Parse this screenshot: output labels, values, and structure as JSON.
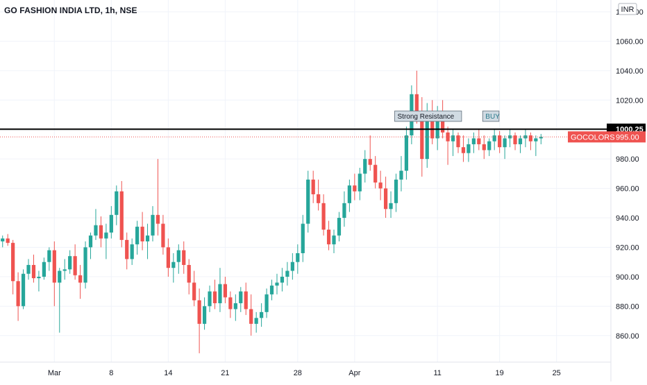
{
  "header": {
    "title": "GO FASHION INDIA LTD, 1h, NSE"
  },
  "price_axis": {
    "currency": "INR"
  },
  "chart_data": {
    "type": "candlestick",
    "title": "GO FASHION INDIA LTD, 1h, NSE",
    "currency": "INR",
    "ylim": [
      842,
      1088
    ],
    "y_ticks": [
      860,
      880,
      900,
      920,
      940,
      960,
      980,
      1000,
      1020,
      1040,
      1060,
      1080
    ],
    "y_tick_labels": [
      "860.00",
      "880.00",
      "900.00",
      "920.00",
      "940.00",
      "960.00",
      "980.00",
      "1000.00",
      "1020.00",
      "1040.00",
      "1060.00",
      "1080.00"
    ],
    "x_ticks": [
      {
        "label": "Mar",
        "index": 10
      },
      {
        "label": "8",
        "index": 21
      },
      {
        "label": "14",
        "index": 32
      },
      {
        "label": "21",
        "index": 43
      },
      {
        "label": "28",
        "index": 57
      },
      {
        "label": "Apr",
        "index": 68
      },
      {
        "label": "11",
        "index": 84
      },
      {
        "label": "19",
        "index": 96
      },
      {
        "label": "25",
        "index": 107
      }
    ],
    "candles_per_day": 7,
    "total_slots": 118,
    "colors": {
      "up": "#26a69a",
      "down": "#ef5350",
      "resistance": "#000000",
      "last_price": "#ef5350"
    },
    "candles": [
      [
        924,
        928,
        920,
        926
      ],
      [
        926,
        929,
        921,
        923
      ],
      [
        923,
        925,
        888,
        897
      ],
      [
        897,
        903,
        870,
        880
      ],
      [
        880,
        905,
        878,
        902
      ],
      [
        902,
        912,
        898,
        908
      ],
      [
        908,
        915,
        896,
        899
      ],
      [
        899,
        904,
        890,
        900
      ],
      [
        900,
        913,
        898,
        910
      ],
      [
        910,
        920,
        904,
        918
      ],
      [
        918,
        924,
        880,
        896
      ],
      [
        896,
        906,
        862,
        904
      ],
      [
        904,
        912,
        898,
        905
      ],
      [
        905,
        918,
        902,
        914
      ],
      [
        914,
        922,
        898,
        901
      ],
      [
        901,
        908,
        885,
        896
      ],
      [
        896,
        924,
        892,
        920
      ],
      [
        920,
        930,
        912,
        928
      ],
      [
        928,
        946,
        925,
        935
      ],
      [
        935,
        941,
        920,
        926
      ],
      [
        926,
        936,
        912,
        930
      ],
      [
        930,
        948,
        926,
        942
      ],
      [
        942,
        962,
        935,
        958
      ],
      [
        958,
        965,
        920,
        925
      ],
      [
        925,
        930,
        905,
        912
      ],
      [
        912,
        926,
        908,
        922
      ],
      [
        922,
        938,
        915,
        934
      ],
      [
        934,
        944,
        918,
        924
      ],
      [
        924,
        936,
        912,
        928
      ],
      [
        928,
        948,
        924,
        942
      ],
      [
        942,
        980,
        928,
        936
      ],
      [
        936,
        942,
        915,
        920
      ],
      [
        920,
        926,
        900,
        906
      ],
      [
        906,
        916,
        896,
        910
      ],
      [
        910,
        922,
        902,
        918
      ],
      [
        918,
        924,
        902,
        908
      ],
      [
        908,
        912,
        888,
        896
      ],
      [
        896,
        904,
        880,
        884
      ],
      [
        884,
        892,
        848,
        868
      ],
      [
        868,
        886,
        864,
        880
      ],
      [
        880,
        894,
        876,
        890
      ],
      [
        890,
        898,
        878,
        882
      ],
      [
        882,
        906,
        876,
        895
      ],
      [
        895,
        900,
        882,
        886
      ],
      [
        886,
        890,
        872,
        878
      ],
      [
        878,
        888,
        870,
        882
      ],
      [
        882,
        893,
        876,
        890
      ],
      [
        890,
        896,
        874,
        878
      ],
      [
        878,
        888,
        860,
        868
      ],
      [
        868,
        876,
        862,
        872
      ],
      [
        872,
        882,
        866,
        876
      ],
      [
        876,
        892,
        872,
        888
      ],
      [
        888,
        898,
        884,
        894
      ],
      [
        894,
        902,
        888,
        896
      ],
      [
        896,
        906,
        890,
        900
      ],
      [
        900,
        910,
        894,
        904
      ],
      [
        904,
        916,
        898,
        910
      ],
      [
        910,
        922,
        902,
        916
      ],
      [
        916,
        942,
        910,
        936
      ],
      [
        936,
        972,
        930,
        966
      ],
      [
        966,
        972,
        950,
        956
      ],
      [
        956,
        966,
        945,
        950
      ],
      [
        950,
        956,
        928,
        932
      ],
      [
        932,
        938,
        918,
        922
      ],
      [
        922,
        932,
        916,
        928
      ],
      [
        928,
        944,
        924,
        940
      ],
      [
        940,
        958,
        934,
        950
      ],
      [
        950,
        966,
        944,
        962
      ],
      [
        962,
        970,
        952,
        958
      ],
      [
        958,
        974,
        952,
        970
      ],
      [
        970,
        986,
        964,
        980
      ],
      [
        980,
        996,
        972,
        976
      ],
      [
        976,
        982,
        960,
        964
      ],
      [
        964,
        972,
        952,
        960
      ],
      [
        960,
        968,
        940,
        946
      ],
      [
        946,
        958,
        940,
        950
      ],
      [
        950,
        970,
        944,
        966
      ],
      [
        966,
        982,
        958,
        972
      ],
      [
        972,
        1002,
        966,
        996
      ],
      [
        996,
        1030,
        990,
        1024
      ],
      [
        1024,
        1040,
        1004,
        1010
      ],
      [
        1010,
        1022,
        968,
        980
      ],
      [
        980,
        1018,
        974,
        1012
      ],
      [
        1012,
        1020,
        990,
        994
      ],
      [
        994,
        1016,
        986,
        1008
      ],
      [
        1008,
        1020,
        994,
        998
      ],
      [
        998,
        1002,
        976,
        992
      ],
      [
        992,
        1000,
        982,
        996
      ],
      [
        996,
        998,
        984,
        988
      ],
      [
        988,
        996,
        978,
        984
      ],
      [
        984,
        994,
        978,
        990
      ],
      [
        990,
        998,
        984,
        994
      ],
      [
        994,
        1000,
        986,
        990
      ],
      [
        990,
        996,
        980,
        986
      ],
      [
        986,
        994,
        982,
        992
      ],
      [
        992,
        1000,
        986,
        996
      ],
      [
        996,
        999,
        984,
        988
      ],
      [
        988,
        996,
        980,
        994
      ],
      [
        994,
        1000,
        988,
        996
      ],
      [
        996,
        998,
        986,
        990
      ],
      [
        990,
        996,
        984,
        994
      ],
      [
        994,
        1000,
        988,
        996
      ],
      [
        996,
        998,
        986,
        992
      ],
      [
        992,
        996,
        982,
        994
      ],
      [
        994,
        997,
        990,
        995
      ]
    ],
    "resistance": {
      "value": 1000.25,
      "label": "1000.25"
    },
    "last_price": {
      "symbol": "GOCOLORS",
      "value": 995.0,
      "label": "995.00"
    },
    "annotations": [
      {
        "text": "Strong Resistance",
        "index": 76,
        "price": 1006
      },
      {
        "text": "BUY",
        "index": 93,
        "price": 1006
      }
    ]
  }
}
